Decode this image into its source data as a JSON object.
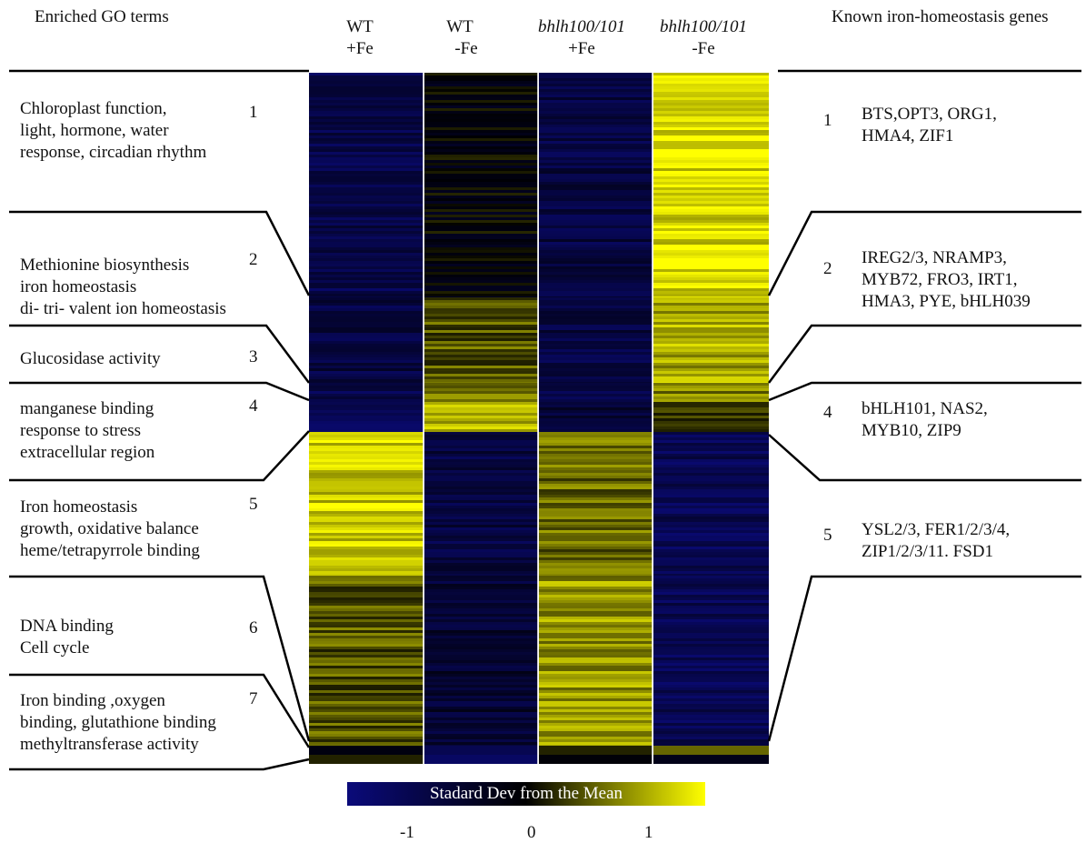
{
  "header_left": "Enriched GO terms",
  "header_right": "Known iron-homeostasis genes",
  "columns": [
    {
      "line1": "WT",
      "line2": "+Fe",
      "italic": false
    },
    {
      "line1": "WT",
      "line2": "-Fe",
      "italic": false
    },
    {
      "line1": "bhlh100/101",
      "line2": "+Fe",
      "italic": true
    },
    {
      "line1": "bhlh100/101",
      "line2": "-Fe",
      "italic": true
    }
  ],
  "clusters": [
    {
      "number": "1",
      "go_lines": [
        "Chloroplast function,",
        "light, hormone, water",
        "response, circadian rhythm"
      ],
      "gene_number": "1",
      "gene_lines": [
        "BTS,OPT3, ORG1,",
        "HMA4, ZIF1"
      ]
    },
    {
      "number": "2",
      "go_lines": [
        "Methionine biosynthesis",
        "iron homeostasis",
        "di- tri- valent ion homeostasis"
      ],
      "gene_number": "2",
      "gene_lines": [
        "IREG2/3, NRAMP3,",
        "MYB72, FRO3, IRT1,",
        "HMA3, PYE, bHLH039"
      ]
    },
    {
      "number": "3",
      "go_lines": [
        "Glucosidase activity"
      ],
      "gene_number": "",
      "gene_lines": []
    },
    {
      "number": "4",
      "go_lines": [
        "manganese  binding",
        "response to stress",
        "extracellular region"
      ],
      "gene_number": "4",
      "gene_lines": [
        "bHLH101, NAS2,",
        "MYB10, ZIP9"
      ]
    },
    {
      "number": "5",
      "go_lines": [
        "Iron homeostasis",
        "growth, oxidative balance",
        "heme/tetrapyrrole binding"
      ],
      "gene_number": "5",
      "gene_lines": [
        "YSL2/3, FER1/2/3/4,",
        "ZIP1/2/3/11. FSD1"
      ]
    },
    {
      "number": "6",
      "go_lines": [
        "DNA binding",
        "Cell cycle"
      ],
      "gene_number": "",
      "gene_lines": []
    },
    {
      "number": "7",
      "go_lines": [
        "Iron binding ,oxygen",
        "binding, glutathione binding",
        "methyltransferase activity"
      ],
      "gene_number": "",
      "gene_lines": []
    }
  ],
  "colorbar": {
    "title": "Stadard Dev from the Mean",
    "ticks": [
      {
        "label": "-1",
        "value": -1
      },
      {
        "label": "0",
        "value": 0
      },
      {
        "label": "1",
        "value": 1
      }
    ],
    "min": -1.5,
    "max": 1.5,
    "low_color": "#0a0a7a",
    "mid_color": "#000000",
    "high_color": "#ffff00"
  },
  "chart_data": {
    "type": "heatmap",
    "title": "",
    "x_categories": [
      "WT +Fe",
      "WT -Fe",
      "bhlh100/101 +Fe",
      "bhlh100/101 -Fe"
    ],
    "scale_label": "Stadard Dev from the Mean",
    "value_range": [
      -1.5,
      1.5
    ],
    "clusters": [
      {
        "cluster": "1",
        "values": [
          -0.9,
          -0.1,
          -0.8,
          1.3
        ]
      },
      {
        "cluster": "2",
        "values": [
          -0.8,
          0.5,
          -0.8,
          1.0
        ]
      },
      {
        "cluster": "3",
        "values": [
          -0.9,
          0.7,
          -0.9,
          0.8
        ]
      },
      {
        "cluster": "4",
        "values": [
          -1.0,
          1.1,
          -0.7,
          0.4
        ]
      },
      {
        "cluster": "5",
        "values": [
          1.2,
          -0.8,
          0.6,
          -1.0
        ]
      },
      {
        "cluster": "6",
        "values": [
          0.5,
          -0.6,
          0.9,
          -1.0
        ]
      },
      {
        "cluster": "7",
        "values": [
          0.7,
          -0.2,
          0.8,
          -1.0
        ]
      }
    ]
  }
}
